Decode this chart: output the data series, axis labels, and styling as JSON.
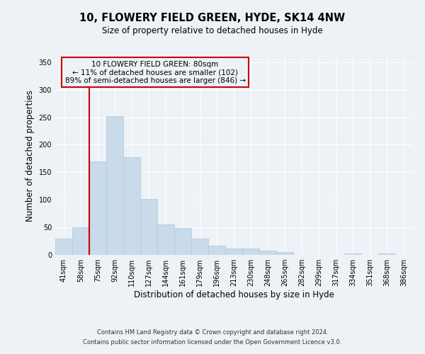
{
  "title_line1": "10, FLOWERY FIELD GREEN, HYDE, SK14 4NW",
  "title_line2": "Size of property relative to detached houses in Hyde",
  "xlabel": "Distribution of detached houses by size in Hyde",
  "ylabel": "Number of detached properties",
  "bar_color": "#c9daea",
  "bar_edge_color": "#b0c8d8",
  "bin_labels": [
    "41sqm",
    "58sqm",
    "75sqm",
    "92sqm",
    "110sqm",
    "127sqm",
    "144sqm",
    "161sqm",
    "179sqm",
    "196sqm",
    "213sqm",
    "230sqm",
    "248sqm",
    "265sqm",
    "282sqm",
    "299sqm",
    "317sqm",
    "334sqm",
    "351sqm",
    "368sqm",
    "386sqm"
  ],
  "bar_heights": [
    30,
    50,
    170,
    252,
    178,
    102,
    55,
    49,
    30,
    17,
    12,
    11,
    8,
    5,
    0,
    0,
    0,
    2,
    0,
    2,
    0
  ],
  "ylim": [
    0,
    360
  ],
  "yticks": [
    0,
    50,
    100,
    150,
    200,
    250,
    300,
    350
  ],
  "vline_x_bar_index": 2,
  "vline_color": "#cc0000",
  "annotation_line1": "10 FLOWERY FIELD GREEN: 80sqm",
  "annotation_line2": "← 11% of detached houses are smaller (102)",
  "annotation_line3": "89% of semi-detached houses are larger (846) →",
  "annotation_box_edge_color": "#cc0000",
  "footer_line1": "Contains HM Land Registry data © Crown copyright and database right 2024.",
  "footer_line2": "Contains public sector information licensed under the Open Government Licence v3.0.",
  "background_color": "#edf2f7",
  "grid_color": "#ffffff"
}
